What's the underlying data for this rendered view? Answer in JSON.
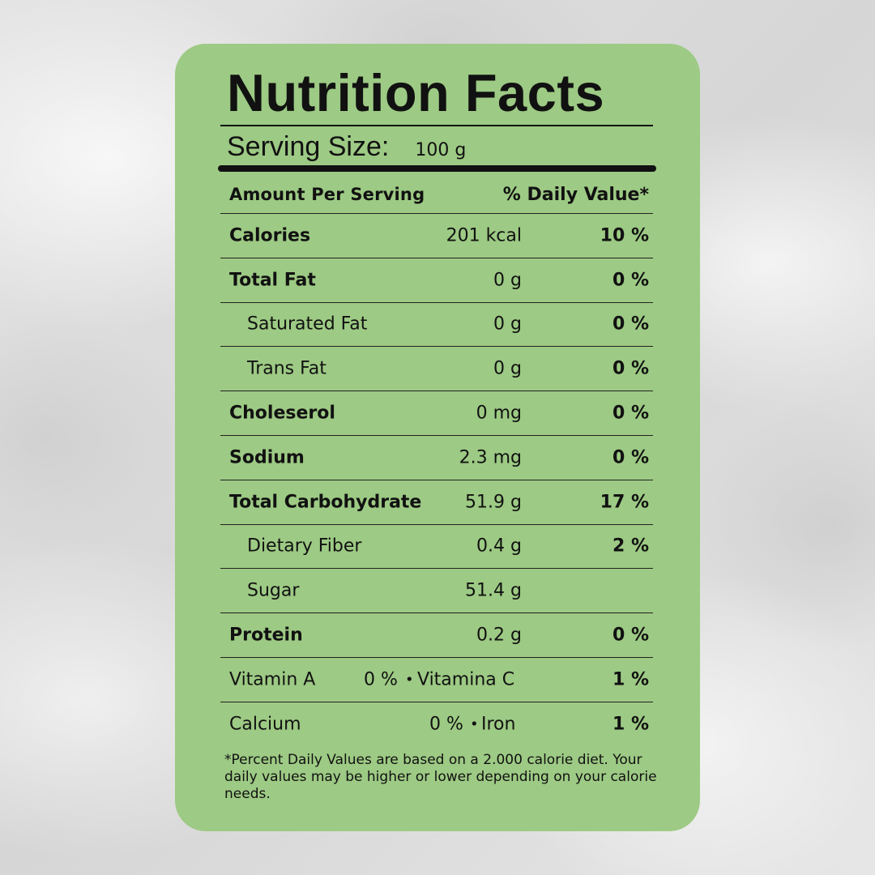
{
  "label": {
    "title": "Nutrition Facts",
    "serving_label": "Serving Size:",
    "serving_value": "100 g",
    "amount_header": "Amount Per Serving",
    "dv_header": "% Daily Value*",
    "rows": [
      {
        "name": "Calories",
        "amount": "201 kcal",
        "pct": "10 %",
        "bold": true
      },
      {
        "name": "Total Fat",
        "amount": "0 g",
        "pct": "0 %",
        "bold": true
      },
      {
        "name": "Saturated Fat",
        "amount": "0 g",
        "pct": "0 %",
        "bold": false
      },
      {
        "name": "Trans Fat",
        "amount": "0 g",
        "pct": "0 %",
        "bold": false
      },
      {
        "name": "Choleserol",
        "amount": "0 mg",
        "pct": "0 %",
        "bold": true
      },
      {
        "name": "Sodium",
        "amount": "2.3 mg",
        "pct": "0 %",
        "bold": true
      },
      {
        "name": "Total Carbohydrate",
        "amount": "51.9 g",
        "pct": "17 %",
        "bold": true
      },
      {
        "name": "Dietary Fiber",
        "amount": "0.4 g",
        "pct": "2 %",
        "bold": false
      },
      {
        "name": "Sugar",
        "amount": "51.4 g",
        "pct": "",
        "bold": false
      },
      {
        "name": "Protein",
        "amount": "0.2 g",
        "pct": "0 %",
        "bold": true
      }
    ],
    "vitamins": [
      {
        "name": "Vitamin A",
        "pct": "0 %",
        "separator": "•",
        "other_name": "Vitamina C",
        "other_pct": "1 %"
      },
      {
        "name": "Calcium",
        "pct": "0 %",
        "separator": "•",
        "other_name": "Iron",
        "other_pct": "1 %"
      }
    ],
    "footnote": "*Percent Daily Values are based on a 2.000 calorie diet. Your daily values may be higher or lower depending on your calorie needs."
  },
  "colors": {
    "card": "#9dca84",
    "text": "#111111",
    "background": "#dcdcdc"
  }
}
